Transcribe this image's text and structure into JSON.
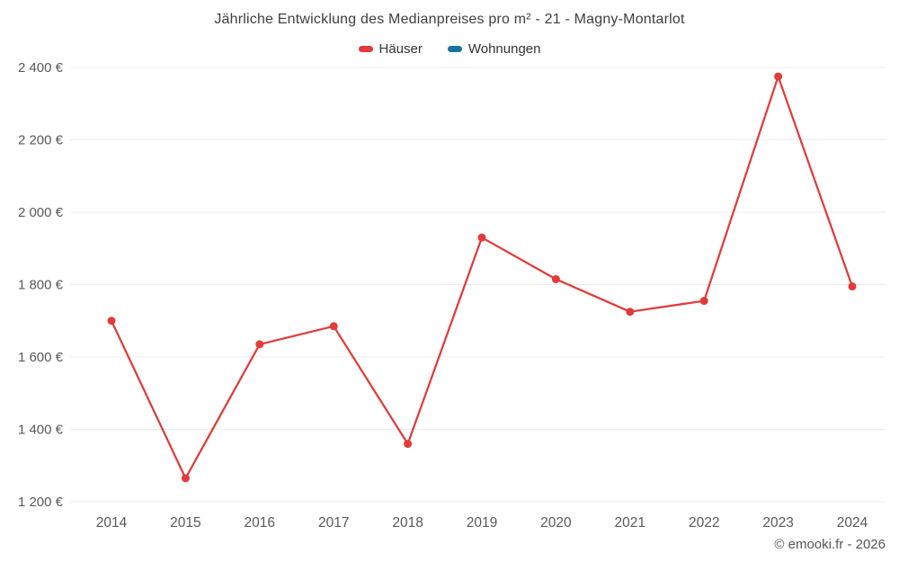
{
  "chart_data": {
    "type": "line",
    "title": "Jährliche Entwicklung des Medianpreises pro m² - 21 - Magny-Montarlot",
    "x": [
      2014,
      2015,
      2016,
      2017,
      2018,
      2019,
      2020,
      2021,
      2022,
      2023,
      2024
    ],
    "series": [
      {
        "name": "Häuser",
        "color": "#e13b3b",
        "values": [
          1700,
          1265,
          1635,
          1685,
          1360,
          1930,
          1815,
          1725,
          1755,
          2375,
          1795
        ]
      },
      {
        "name": "Wohnungen",
        "color": "#1673a3",
        "values": []
      }
    ],
    "xlabel": "",
    "ylabel": "",
    "ylim": [
      1200,
      2400
    ],
    "yticks": [
      1200,
      1400,
      1600,
      1800,
      2000,
      2200,
      2400
    ],
    "ytick_labels": [
      "1 200 €",
      "1 400 €",
      "1 600 €",
      "1 800 €",
      "2 000 €",
      "2 200 €",
      "2 400 €"
    ],
    "grid": "horizontal",
    "grid_color": "#ececec",
    "tick_label_color": "#58595b",
    "legend_position": "top"
  },
  "footer": {
    "credit": "© emooki.fr - 2026"
  }
}
